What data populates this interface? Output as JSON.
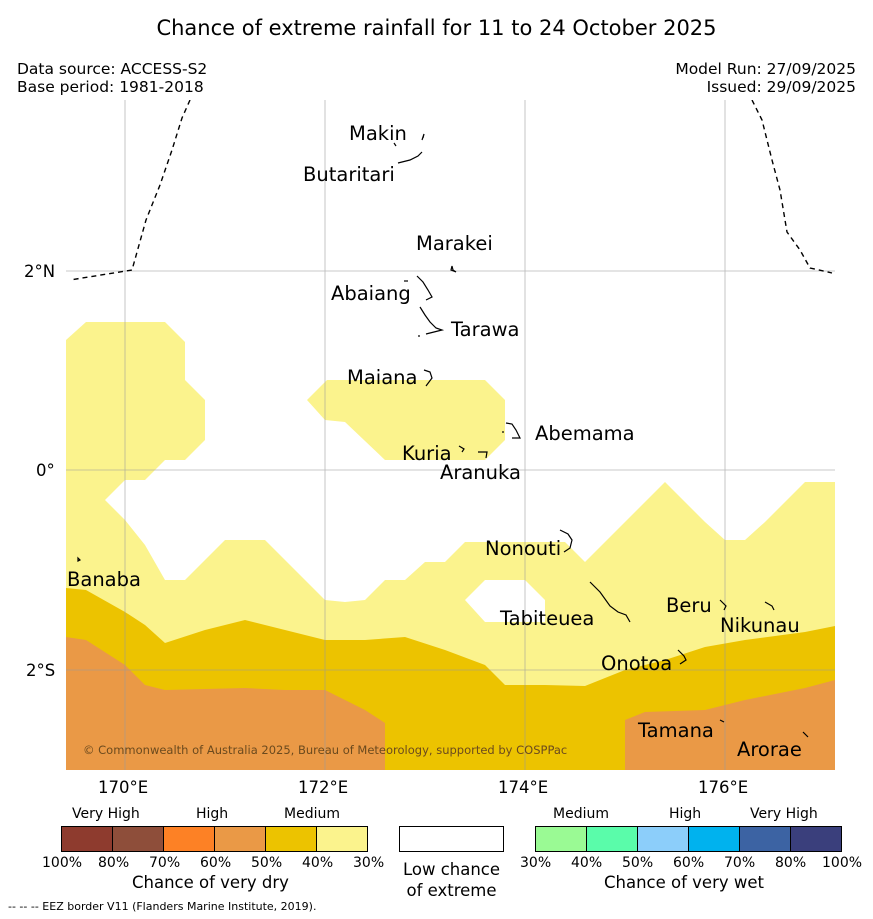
{
  "header": {
    "title": "Chance of extreme rainfall for 11 to 24 October 2025",
    "data_source": "Data source: ACCESS-S2",
    "base_period": "Base period: 1981-2018",
    "model_run": "Model Run: 27/09/2025",
    "issued": "Issued: 29/09/2025"
  },
  "map": {
    "axis_labels": {
      "lat": [
        "2°N",
        "0°",
        "2°S"
      ],
      "lon": [
        "170°E",
        "172°E",
        "174°E",
        "176°E"
      ]
    },
    "places": [
      "Makin",
      "Butaritari",
      "Marakei",
      "Abaiang",
      "Tarawa",
      "Maiana",
      "Abemama",
      "Kuria",
      "Aranuka",
      "Nonouti",
      "Banaba",
      "Tabiteuea",
      "Beru",
      "Nikunau",
      "Onotoa",
      "Tamana",
      "Arorae"
    ],
    "copyright": "© Commonwealth of Australia 2025, Bureau of Meteorology, supported by COSPPac"
  },
  "legend": {
    "dry": {
      "categories": [
        "Very High",
        "High",
        "Medium"
      ],
      "colors": [
        "#8e3b2e",
        "#8e4e3a",
        "#fd8125",
        "#ea9946",
        "#ecc300",
        "#fbf38d"
      ],
      "ticks": [
        "100%",
        "80%",
        "70%",
        "60%",
        "50%",
        "40%",
        "30%"
      ],
      "title": "Chance of very dry"
    },
    "low": {
      "line1": "Low chance",
      "line2": "of extreme"
    },
    "wet": {
      "categories": [
        "Medium",
        "High",
        "Very High"
      ],
      "colors": [
        "#9afa94",
        "#5afcaa",
        "#8ccefa",
        "#00b2ee",
        "#3c63a3",
        "#3a3f7c"
      ],
      "ticks": [
        "30%",
        "40%",
        "50%",
        "60%",
        "70%",
        "80%",
        "100%"
      ],
      "title": "Chance of very wet"
    },
    "colors": {
      "dry_40_50": "#ecc300",
      "dry_50_60": "#ea9946",
      "dry_30_40": "#fbf38d"
    }
  },
  "footnote": "--  --  -- EEZ border V11 (Flanders Marine Institute, 2019)."
}
